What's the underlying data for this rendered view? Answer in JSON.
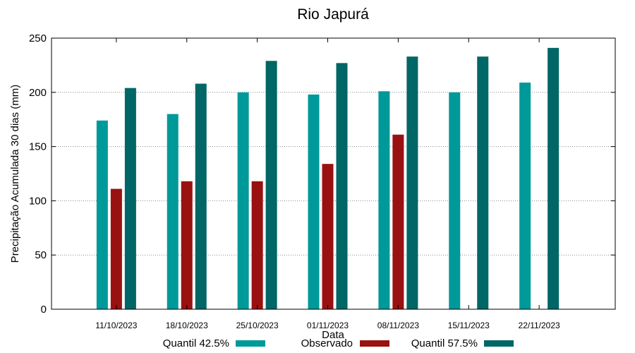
{
  "chart_data": {
    "type": "bar",
    "title": "Rio Japurá",
    "xlabel": "Data",
    "ylabel": "Precipitação Acumulada 30 dias (mm)",
    "ylim": [
      0,
      250
    ],
    "yticks": [
      0,
      50,
      100,
      150,
      200,
      250
    ],
    "grid": "horizontal dotted",
    "legend_position": "bottom",
    "categories": [
      "11/10/2023",
      "18/10/2023",
      "25/10/2023",
      "01/11/2023",
      "08/11/2023",
      "15/11/2023",
      "22/11/2023"
    ],
    "series": [
      {
        "name": "Quantil 42.5%",
        "color": "#009999",
        "values": [
          174,
          180,
          200,
          198,
          201,
          200,
          209
        ]
      },
      {
        "name": "Observado",
        "color": "#991111",
        "values": [
          111,
          118,
          118,
          134,
          161,
          null,
          null
        ]
      },
      {
        "name": "Quantil 57.5%",
        "color": "#006666",
        "values": [
          204,
          208,
          229,
          227,
          233,
          233,
          241
        ]
      }
    ]
  }
}
